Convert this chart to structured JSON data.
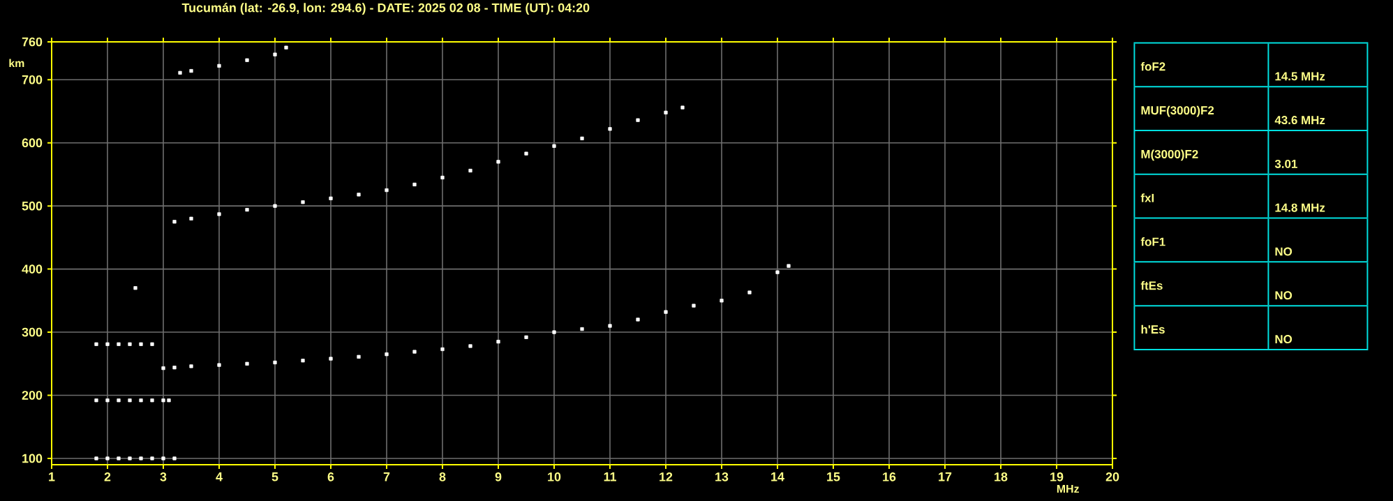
{
  "chart_data": [
    {
      "type": "scatter",
      "title": "Tucumán (lat: -26.9, lon: 294.6) - DATE: 2025 02 08 - TIME (UT): 04:20",
      "xlabel": "MHz",
      "ylabel": "km",
      "xlim": [
        1,
        20
      ],
      "ylim": [
        90,
        760
      ],
      "xticks": [
        1,
        2,
        3,
        4,
        5,
        6,
        7,
        8,
        9,
        10,
        11,
        12,
        13,
        14,
        15,
        16,
        17,
        18,
        19,
        20
      ],
      "yticks": [
        100,
        200,
        300,
        400,
        500,
        600,
        700,
        760
      ],
      "grid": true,
      "marker": "square",
      "series": [
        {
          "color": "#ffffff",
          "x": [
            3.0,
            3.2,
            3.5,
            4,
            4.5,
            5,
            5.5,
            6,
            6.5,
            7,
            7.5,
            8,
            8.5,
            9,
            9.5,
            10,
            10.5,
            11,
            11.5,
            12,
            12.5,
            13,
            13.5,
            14,
            14.2
          ],
          "values": [
            243,
            244,
            246,
            248,
            250,
            252,
            255,
            258,
            261,
            265,
            269,
            273,
            278,
            285,
            292,
            300,
            305,
            310,
            320,
            332,
            342,
            350,
            363,
            395,
            405
          ]
        },
        {
          "color": "#ffffff",
          "x": [
            3.2,
            3.5,
            4,
            4.5,
            5,
            5.5,
            6,
            6.5,
            7,
            7.5,
            8,
            8.5,
            9,
            9.5,
            10,
            10.5,
            11,
            11.5,
            12,
            12.3
          ],
          "values": [
            475,
            480,
            487,
            494,
            500,
            506,
            512,
            518,
            525,
            534,
            545,
            556,
            570,
            583,
            595,
            607,
            622,
            636,
            648,
            656
          ]
        },
        {
          "color": "#ffffff",
          "x": [
            3.3,
            3.5,
            4,
            4.5,
            5,
            5.2
          ],
          "values": [
            711,
            714,
            722,
            731,
            740,
            751
          ]
        },
        {
          "color": "#ffffff",
          "x": [
            1.8,
            2.0,
            2.2,
            2.4,
            2.6,
            2.8,
            3.0,
            3.2
          ],
          "values": [
            100,
            100,
            100,
            100,
            100,
            100,
            100,
            100
          ]
        },
        {
          "color": "#ffffff",
          "x": [
            1.8,
            2.0,
            2.2,
            2.4,
            2.6,
            2.8,
            3.0,
            3.1
          ],
          "values": [
            192,
            192,
            192,
            192,
            192,
            192,
            192,
            192
          ]
        },
        {
          "color": "#ffffff",
          "x": [
            1.8,
            2.0,
            2.2,
            2.4,
            2.6,
            2.8
          ],
          "values": [
            281,
            281,
            281,
            281,
            281,
            281
          ]
        },
        {
          "color": "#ffffff",
          "x": [
            2.5
          ],
          "values": [
            370
          ]
        }
      ]
    },
    {
      "type": "other",
      "annotations": [
        "foF2",
        "14.5 MHz",
        "MUF(3000)F2",
        "43.6 MHz",
        "M(3000)F2",
        "3.01",
        "fxI",
        "14.8 MHz",
        "foF1",
        "NO",
        "ftEs",
        "NO",
        "h'Es",
        "NO"
      ]
    }
  ]
}
